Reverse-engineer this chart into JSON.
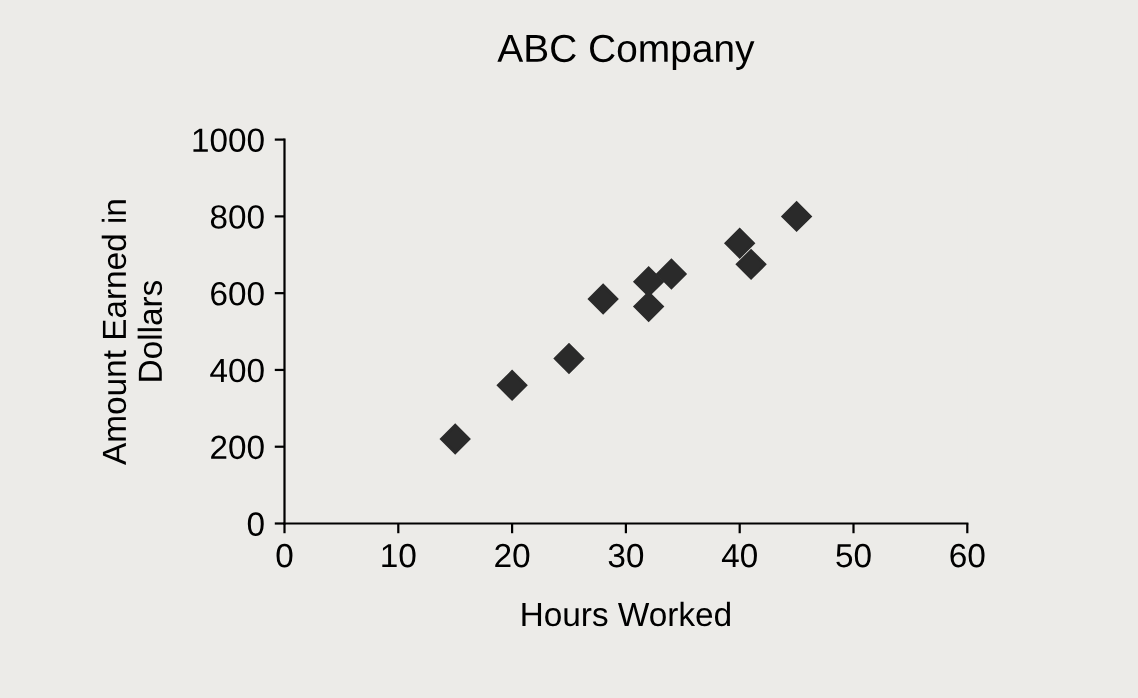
{
  "chart_data": {
    "type": "scatter",
    "title": "ABC Company",
    "xlabel": "Hours Worked",
    "ylabel": "Amount Earned in\nDollars",
    "x": [
      15,
      20,
      25,
      28,
      32,
      32,
      34,
      40,
      41,
      45
    ],
    "values": [
      220,
      360,
      430,
      585,
      630,
      565,
      650,
      730,
      675,
      800
    ],
    "color": "#2a2a2a",
    "marker": "diamond",
    "xlim": [
      0,
      60
    ],
    "xticks": [
      0,
      10,
      20,
      30,
      40,
      50,
      60
    ],
    "ylim": [
      0,
      1000
    ],
    "yticks": [
      0,
      200,
      400,
      600,
      800,
      1000
    ],
    "grid": false
  }
}
